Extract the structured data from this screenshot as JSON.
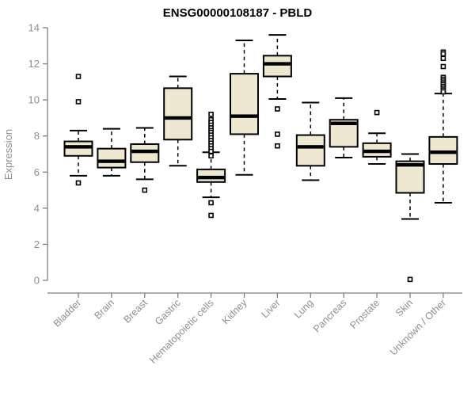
{
  "colors": {
    "box_fill": "#ede8cf",
    "box_border": "#000000",
    "median": "#000000",
    "whisker": "#000000",
    "outlier_stroke": "#000000",
    "axis_line": "#7f7f7f",
    "axis_text": "#8f8f8f",
    "title_text": "#000000",
    "background": "#ffffff"
  },
  "chart_data": {
    "type": "boxplot",
    "title": "ENSG00000108187 - PBLD",
    "xlabel": "",
    "ylabel": "Expression",
    "ylim": [
      0,
      14
    ],
    "yticks": [
      0,
      2,
      4,
      6,
      8,
      10,
      12,
      14
    ],
    "grid": false,
    "legend": false,
    "categories": [
      "Bladder",
      "Brain",
      "Breast",
      "Gastric",
      "Hematopoietic cells",
      "Kidney",
      "Liver",
      "Lung",
      "Pancreas",
      "Prostate",
      "Skin",
      "Unknown / Other"
    ],
    "boxes": [
      {
        "category": "Bladder",
        "low": 5.8,
        "q1": 6.9,
        "median": 7.4,
        "q3": 7.7,
        "high": 8.3,
        "outliers": [
          11.3,
          9.9,
          5.4
        ]
      },
      {
        "category": "Brain",
        "low": 5.8,
        "q1": 6.25,
        "median": 6.6,
        "q3": 7.3,
        "high": 8.4,
        "outliers": []
      },
      {
        "category": "Breast",
        "low": 5.6,
        "q1": 6.55,
        "median": 7.15,
        "q3": 7.55,
        "high": 8.45,
        "outliers": [
          5.0
        ]
      },
      {
        "category": "Gastric",
        "low": 6.35,
        "q1": 7.8,
        "median": 9.0,
        "q3": 10.65,
        "high": 11.3,
        "outliers": []
      },
      {
        "category": "Hematopoietic cells",
        "low": 4.6,
        "q1": 5.45,
        "median": 5.7,
        "q3": 6.15,
        "high": 7.1,
        "outliers": [
          9.2,
          8.9,
          8.75,
          8.6,
          8.45,
          8.3,
          8.2,
          8.05,
          7.9,
          7.75,
          7.6,
          7.45,
          7.3,
          7.15,
          6.9,
          4.3,
          3.6
        ]
      },
      {
        "category": "Kidney",
        "low": 5.85,
        "q1": 8.1,
        "median": 9.1,
        "q3": 11.45,
        "high": 13.3,
        "outliers": []
      },
      {
        "category": "Liver",
        "low": 10.05,
        "q1": 11.3,
        "median": 12.0,
        "q3": 12.45,
        "high": 13.6,
        "outliers": [
          9.5,
          8.1,
          7.45
        ]
      },
      {
        "category": "Lung",
        "low": 5.55,
        "q1": 6.35,
        "median": 7.4,
        "q3": 8.05,
        "high": 9.85,
        "outliers": []
      },
      {
        "category": "Pancreas",
        "low": 6.8,
        "q1": 7.4,
        "median": 8.7,
        "q3": 8.9,
        "high": 10.1,
        "outliers": []
      },
      {
        "category": "Prostate",
        "low": 6.45,
        "q1": 6.85,
        "median": 7.15,
        "q3": 7.6,
        "high": 8.15,
        "outliers": [
          9.3
        ]
      },
      {
        "category": "Skin",
        "low": 3.4,
        "q1": 4.85,
        "median": 6.4,
        "q3": 6.6,
        "high": 7.0,
        "outliers": [
          0.05
        ]
      },
      {
        "category": "Unknown / Other",
        "low": 4.3,
        "q1": 6.45,
        "median": 7.1,
        "q3": 7.95,
        "high": 10.35,
        "outliers": [
          12.65,
          12.55,
          12.3,
          11.85,
          11.25,
          11.15,
          11.05,
          10.95,
          10.85,
          10.75,
          10.65,
          10.55,
          10.45
        ]
      }
    ]
  }
}
